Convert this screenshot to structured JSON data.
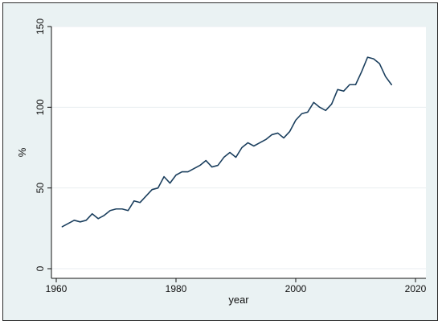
{
  "chart_data": {
    "type": "line",
    "title": "",
    "xlabel": "year",
    "ylabel": "%",
    "xlim": [
      1957,
      2020
    ],
    "ylim": [
      0,
      150
    ],
    "x_ticks": [
      1960,
      1980,
      2000,
      2020
    ],
    "y_ticks": [
      0,
      50,
      100,
      150
    ],
    "grid": true,
    "legend": "none",
    "colors": {
      "line": "#1b3f5e",
      "background": "#eaf2f3",
      "plot_area": "#ffffff",
      "grid": "#e9eef0"
    },
    "series": [
      {
        "x": [
          1961,
          1962,
          1963,
          1964,
          1965,
          1966,
          1967,
          1968,
          1969,
          1970,
          1971,
          1972,
          1973,
          1974,
          1975,
          1976,
          1977,
          1978,
          1979,
          1980,
          1981,
          1982,
          1983,
          1984,
          1985,
          1986,
          1987,
          1988,
          1989,
          1990,
          1991,
          1992,
          1993,
          1994,
          1995,
          1996,
          1997,
          1998,
          1999,
          2000,
          2001,
          2002,
          2003,
          2004,
          2005,
          2006,
          2007,
          2008,
          2009,
          2010,
          2011,
          2012,
          2013,
          2014,
          2015,
          2016
        ],
        "values": [
          26,
          28,
          30,
          29,
          30,
          34,
          31,
          33,
          36,
          37,
          37,
          36,
          42,
          41,
          45,
          49,
          50,
          57,
          53,
          58,
          60,
          60,
          62,
          64,
          67,
          63,
          64,
          69,
          72,
          69,
          75,
          78,
          76,
          78,
          80,
          83,
          84,
          81,
          85,
          92,
          96,
          97,
          103,
          100,
          98,
          102,
          111,
          110,
          114,
          114,
          122,
          131,
          130,
          127,
          119,
          114
        ]
      }
    ]
  }
}
